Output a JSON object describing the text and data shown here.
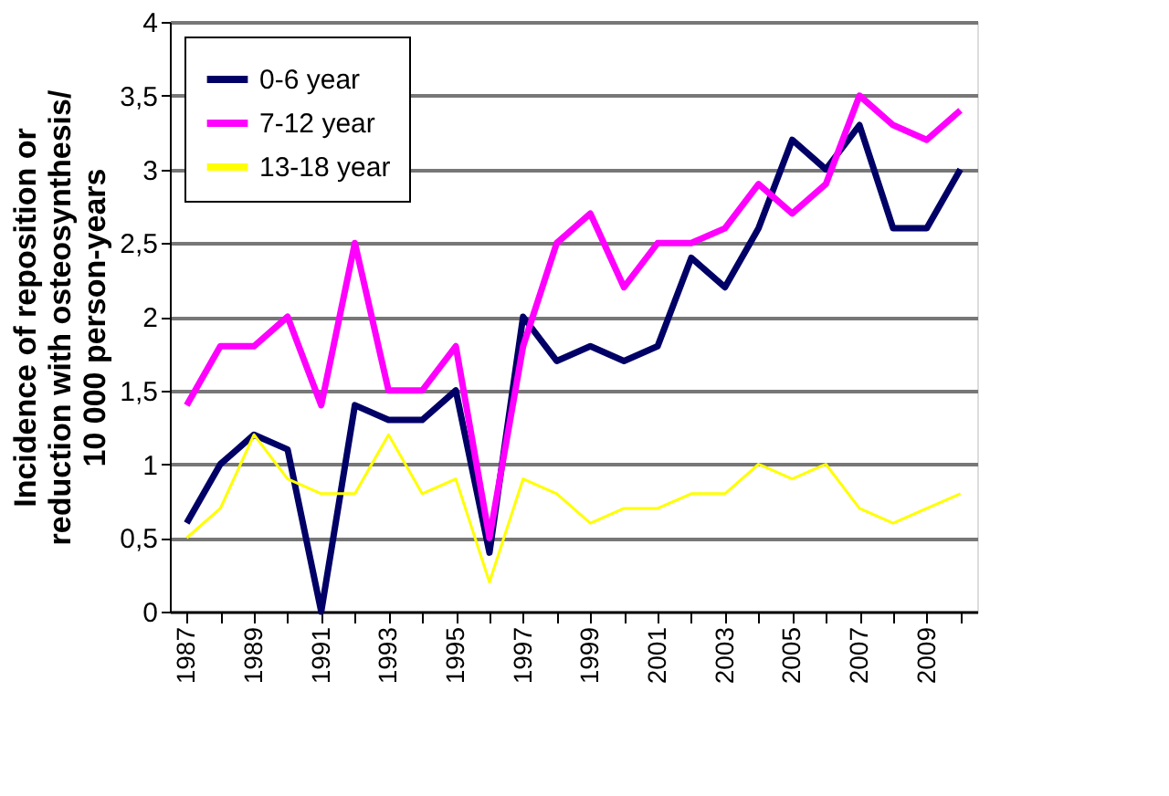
{
  "chart_data": {
    "type": "line",
    "ylabel": "Incidence of reposition or reduction with osteosynthesis/ 10 000 person-years",
    "categories": [
      "1987",
      null,
      "1989",
      null,
      "1991",
      null,
      "1993",
      null,
      "1995",
      null,
      "1997",
      null,
      "1999",
      null,
      "2001",
      null,
      "2003",
      null,
      "2005",
      null,
      "2007",
      null,
      "2009",
      null
    ],
    "series": [
      {
        "name": "0-6 year",
        "color": "#000066",
        "values": [
          0.6,
          1.0,
          1.2,
          1.1,
          0,
          1.4,
          1.3,
          1.3,
          1.5,
          0.4,
          2.0,
          1.7,
          1.8,
          1.7,
          1.8,
          2.4,
          2.2,
          2.6,
          3.2,
          3.0,
          3.3,
          2.6,
          2.6,
          3.0
        ]
      },
      {
        "name": "7-12 year",
        "color": "#ff00ff",
        "values": [
          1.4,
          1.8,
          1.8,
          2.0,
          1.4,
          2.5,
          1.5,
          1.5,
          1.8,
          0.5,
          1.8,
          2.5,
          2.7,
          2.2,
          2.5,
          2.5,
          2.6,
          2.9,
          2.7,
          2.9,
          3.5,
          3.3,
          3.2,
          3.4
        ]
      },
      {
        "name": "13-18 year",
        "color": "#ffff00",
        "values": [
          0.5,
          0.7,
          1.2,
          0.9,
          0.8,
          0.8,
          1.2,
          0.8,
          0.9,
          0.2,
          0.9,
          0.8,
          0.6,
          0.7,
          0.7,
          0.8,
          0.8,
          1.0,
          0.9,
          1.0,
          0.7,
          0.6,
          0.7,
          0.8
        ]
      }
    ],
    "ylim": [
      0,
      4
    ],
    "yticks": [
      0,
      {
        "value": 0.5,
        "label": "0,5"
      },
      1,
      {
        "value": 1.5,
        "label": "1,5"
      },
      2,
      {
        "value": 2.5,
        "label": "2,5"
      },
      3,
      {
        "value": 3.5,
        "label": "3,5"
      },
      4
    ],
    "grid": "y",
    "legend": "top left",
    "marker": "none",
    "line_style": "solid"
  }
}
